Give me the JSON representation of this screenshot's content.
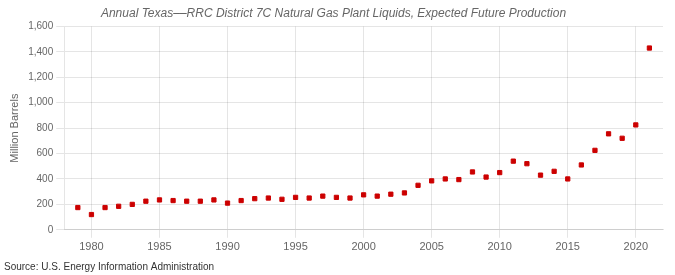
{
  "chart_data": {
    "type": "scatter",
    "title": "Annual Texas––RRC District 7C Natural Gas Plant Liquids, Expected Future Production",
    "ylabel": "Million Barrels",
    "annotations": [
      "Source: U.S. Energy Information Administration"
    ],
    "x": [
      1979,
      1980,
      1981,
      1982,
      1983,
      1984,
      1985,
      1986,
      1987,
      1988,
      1989,
      1990,
      1991,
      1992,
      1993,
      1994,
      1995,
      1996,
      1997,
      1998,
      1999,
      2000,
      2001,
      2002,
      2003,
      2004,
      2005,
      2006,
      2007,
      2008,
      2009,
      2010,
      2011,
      2012,
      2013,
      2014,
      2015,
      2016,
      2017,
      2018,
      2019,
      2020,
      2021
    ],
    "values": [
      175,
      120,
      175,
      185,
      200,
      225,
      235,
      230,
      225,
      225,
      235,
      210,
      230,
      245,
      250,
      240,
      255,
      250,
      265,
      255,
      250,
      275,
      265,
      280,
      290,
      350,
      385,
      400,
      395,
      455,
      415,
      450,
      540,
      520,
      430,
      460,
      400,
      510,
      625,
      755,
      720,
      825,
      1430
    ],
    "color": "#cc0000",
    "marker": "square",
    "xlim": [
      1978,
      2022
    ],
    "xticks": [
      1980,
      1985,
      1990,
      1995,
      2000,
      2005,
      2010,
      2015,
      2020
    ],
    "ylim": [
      0,
      1600
    ],
    "yticks": [
      0,
      200,
      400,
      600,
      800,
      {
        "value": 1000,
        "label": "1,000"
      },
      {
        "value": 1200,
        "label": "1,200"
      },
      {
        "value": 1400,
        "label": "1,400"
      },
      {
        "value": 1600,
        "label": "1,600"
      }
    ],
    "grid": true
  }
}
